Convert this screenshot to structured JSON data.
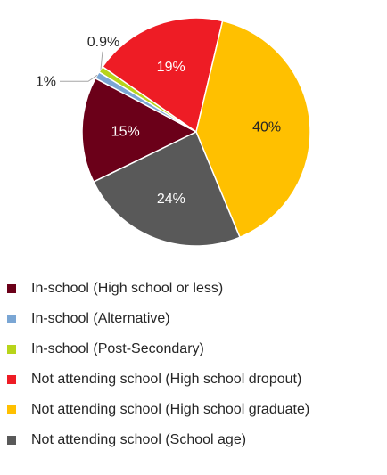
{
  "chart_data": {
    "type": "pie",
    "title": "",
    "slices": [
      {
        "label": "In-school (High school or less)",
        "value": 15,
        "display": "15%",
        "color": "#6b0019"
      },
      {
        "label": "In-school (Alternative)",
        "value": 1,
        "display": "1%",
        "color": "#7aa6d4"
      },
      {
        "label": "In-school (Post-Secondary)",
        "value": 0.9,
        "display": "0.9%",
        "color": "#b8d41a"
      },
      {
        "label": "Not attending school (High school dropout)",
        "value": 19,
        "display": "19%",
        "color": "#ee1c25"
      },
      {
        "label": "Not attending school (High school graduate)",
        "value": 40,
        "display": "40%",
        "color": "#ffc000"
      },
      {
        "label": "Not attending school (School age)",
        "value": 24,
        "display": "24%",
        "color": "#595959"
      }
    ],
    "legend_position": "bottom-left"
  }
}
